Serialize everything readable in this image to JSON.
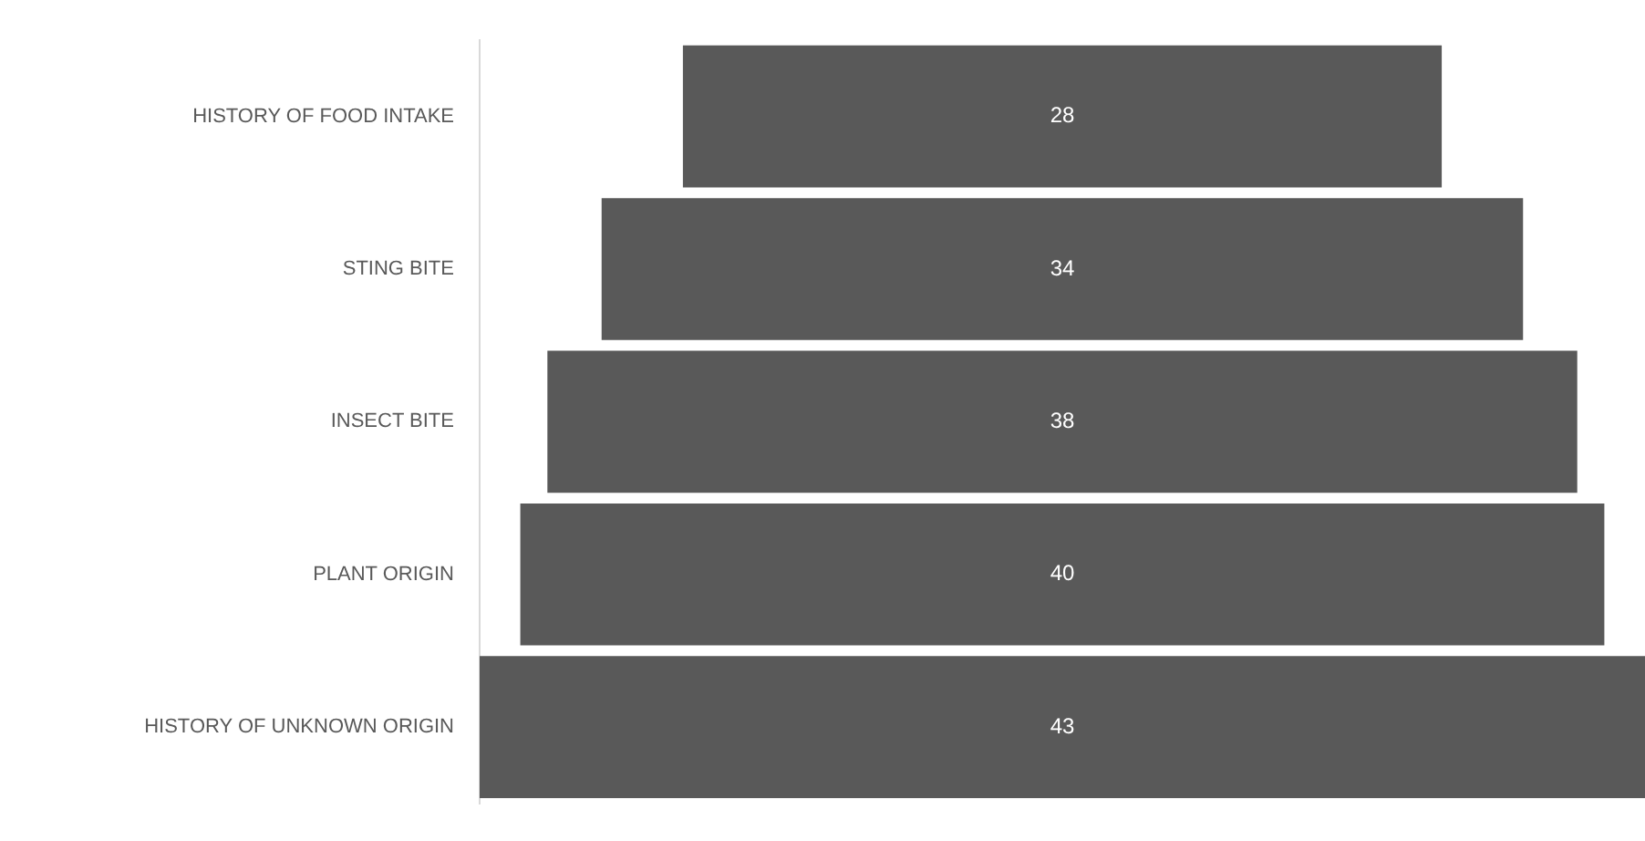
{
  "chart_data": {
    "type": "other",
    "categories": [
      "HISTORY OF FOOD INTAKE",
      "STING BITE",
      "INSECT BITE",
      "PLANT ORIGIN",
      "HISTORY OF UNKNOWN ORIGIN"
    ],
    "values": [
      28,
      34,
      38,
      40,
      43
    ],
    "color": "#595959",
    "data_labels": true
  }
}
